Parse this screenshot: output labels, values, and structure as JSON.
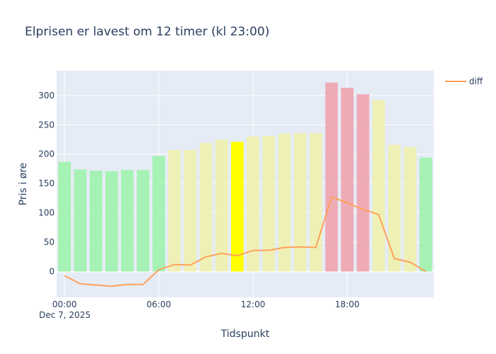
{
  "chart_data": {
    "type": "bar",
    "title": "Elprisen er lavest om 12 timer (kl 23:00)",
    "xlabel": "Tidspunkt",
    "ylabel": "Pris i øre",
    "x_date_label": "Dec 7, 2025",
    "x_ticks": [
      "00:00",
      "06:00",
      "12:00",
      "18:00"
    ],
    "x_tick_hours": [
      0,
      6,
      12,
      18
    ],
    "y_ticks": [
      0,
      50,
      100,
      150,
      200,
      250,
      300
    ],
    "ylim": [
      -44,
      342
    ],
    "xlim_hours": [
      -0.5,
      23.5
    ],
    "grid": true,
    "legend_position": "top-right",
    "hours": [
      0,
      1,
      2,
      3,
      4,
      5,
      6,
      7,
      8,
      9,
      10,
      11,
      12,
      13,
      14,
      15,
      16,
      17,
      18,
      19,
      20,
      21,
      22,
      23
    ],
    "values": [
      187,
      174,
      172,
      171,
      173,
      173,
      197,
      207,
      207,
      219,
      225,
      221,
      230,
      231,
      235,
      236,
      236,
      322,
      313,
      302,
      292,
      216,
      212,
      194
    ],
    "bar_levels": [
      "low",
      "low",
      "low",
      "low",
      "low",
      "low",
      "low",
      "mid",
      "mid",
      "mid",
      "mid",
      "current",
      "mid",
      "mid",
      "mid",
      "mid",
      "mid",
      "high",
      "high",
      "high",
      "mid",
      "mid",
      "mid",
      "low"
    ],
    "level_colors": {
      "low": "#a2f2b0",
      "mid": "#eef0b2",
      "high": "#eea8b2",
      "current": "#ffff00"
    },
    "series": [
      {
        "name": "diff",
        "type": "line",
        "color": "#ffa15a",
        "values": [
          -7,
          -21,
          -23,
          -25,
          -22,
          -22,
          3,
          12,
          11,
          25,
          31,
          27,
          36,
          36,
          41,
          42,
          41,
          127,
          117,
          106,
          97,
          22,
          16,
          0
        ]
      }
    ]
  }
}
